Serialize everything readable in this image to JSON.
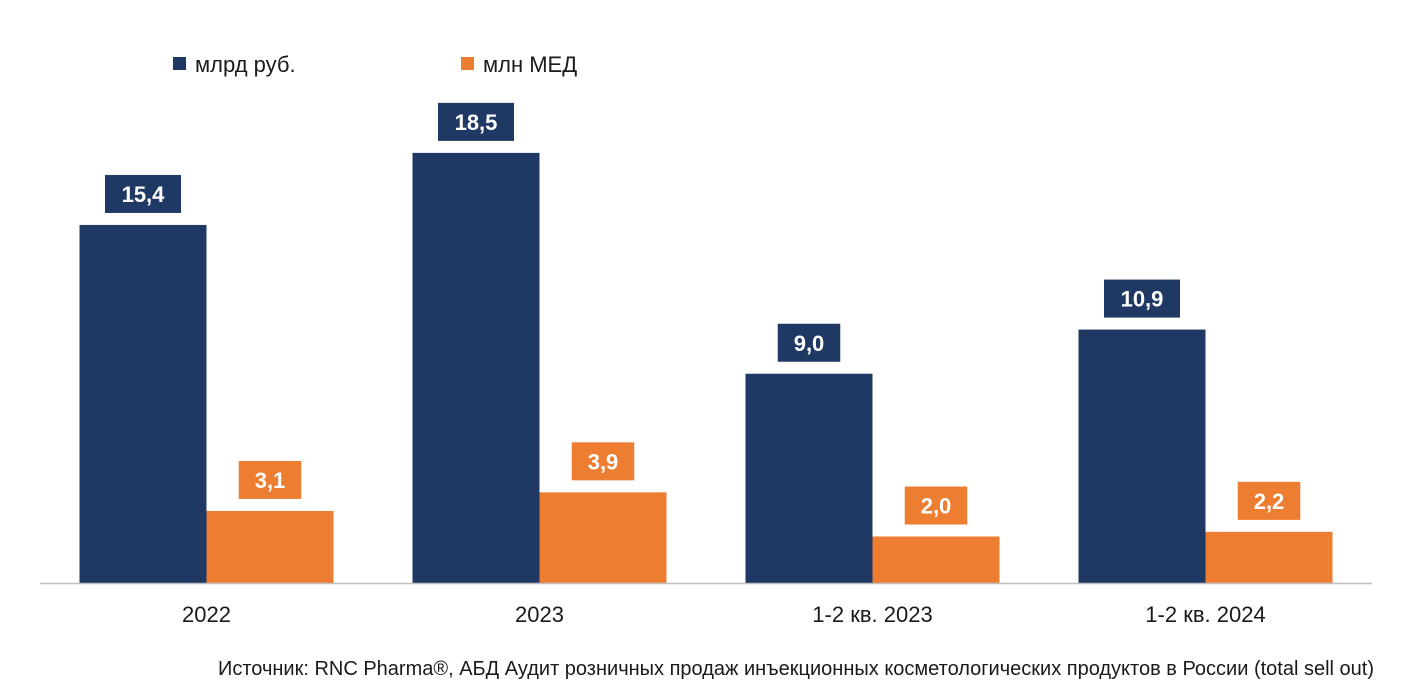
{
  "chart_data": {
    "type": "bar",
    "categories": [
      "2022",
      "2023",
      "1-2 кв. 2023",
      "1-2 кв. 2024"
    ],
    "series": [
      {
        "name": "млрд руб.",
        "color": "#1f3864",
        "values": [
          15.4,
          18.5,
          9.0,
          10.9
        ],
        "labels": [
          "15,4",
          "18,5",
          "9,0",
          "10,9"
        ]
      },
      {
        "name": "млн МЕД",
        "color": "#ed7d31",
        "values": [
          3.1,
          3.9,
          2.0,
          2.2
        ],
        "labels": [
          "3,1",
          "3,9",
          "2,0",
          "2,2"
        ]
      }
    ],
    "ylim": [
      0,
      20
    ],
    "grid": false,
    "y_axis_visible": false,
    "legend_position": "top-left",
    "axis_color": "#bfbfbf"
  },
  "source_note": "Источник: RNC Pharma®, АБД Аудит розничных продаж инъекционных  косметологических продуктов в России (total sell out)"
}
